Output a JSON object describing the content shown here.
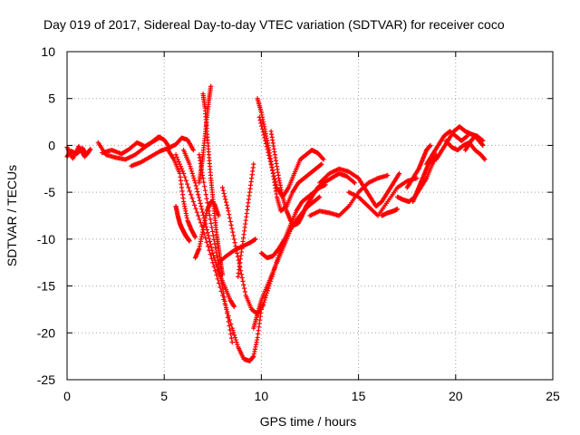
{
  "chart_data": {
    "type": "scatter",
    "title": "Day 019 of 2017, Sidereal Day-to-day VTEC variation (SDTVAR) for receiver coco",
    "xlabel": "GPS time / hours",
    "ylabel": "SDTVAR / TECUs",
    "xlim": [
      0,
      25
    ],
    "ylim": [
      -25,
      10
    ],
    "xticks": [
      0,
      5,
      10,
      15,
      20,
      25
    ],
    "yticks": [
      -25,
      -20,
      -15,
      -10,
      -5,
      0,
      5,
      10
    ],
    "grid": true,
    "marker": "+",
    "color": "#ff0000",
    "series": [
      {
        "x": [
          0.0,
          0.2,
          0.5,
          0.8,
          1.0,
          1.2
        ],
        "y": [
          -1.2,
          -0.6,
          -0.9,
          -0.3,
          -1.0,
          -0.4
        ]
      },
      {
        "x": [
          0.0,
          0.3,
          0.6,
          0.9,
          1.1
        ],
        "y": [
          -0.2,
          -1.4,
          -0.1,
          -1.2,
          -0.7
        ]
      },
      {
        "x": [
          1.6,
          2.0,
          2.5,
          3.0,
          3.5,
          4.0,
          4.4,
          4.7,
          5.0,
          5.3
        ],
        "y": [
          0.3,
          -1.0,
          -1.3,
          -1.5,
          -1.0,
          -0.2,
          0.4,
          0.9,
          0.6,
          -0.3
        ]
      },
      {
        "x": [
          1.8,
          2.3,
          2.8,
          3.2,
          3.6,
          4.0,
          4.5,
          4.8
        ],
        "y": [
          -0.8,
          -0.5,
          -0.9,
          -0.4,
          0.3,
          -0.1,
          0.5,
          0.9
        ]
      },
      {
        "x": [
          3.3,
          3.8,
          4.3,
          4.8,
          5.2,
          5.6,
          5.9,
          6.2,
          6.5
        ],
        "y": [
          -2.2,
          -1.8,
          -1.2,
          -0.6,
          -0.3,
          0.1,
          0.8,
          0.6,
          -0.5
        ]
      },
      {
        "x": [
          5.2,
          5.5,
          5.8,
          6.0,
          6.2,
          6.4,
          6.6
        ],
        "y": [
          -0.5,
          -1.5,
          -3.0,
          -6.0,
          -8.0,
          -9.0,
          -9.8
        ]
      },
      {
        "x": [
          5.6,
          5.7,
          5.8,
          5.9,
          6.0,
          6.1,
          6.2,
          6.3
        ],
        "y": [
          -6.5,
          -7.5,
          -8.3,
          -8.8,
          -9.2,
          -9.6,
          -9.9,
          -10.2
        ]
      },
      {
        "x": [
          6.0,
          6.3,
          6.6,
          6.9,
          7.2,
          7.5,
          7.8,
          8.1,
          8.4,
          8.6
        ],
        "y": [
          -0.5,
          -2.0,
          -4.0,
          -6.5,
          -9.0,
          -11.5,
          -13.5,
          -15.0,
          -16.5,
          -17.2
        ]
      },
      {
        "x": [
          7.8,
          8.2,
          8.6,
          9.0,
          9.4,
          9.7
        ],
        "y": [
          -12.5,
          -11.8,
          -11.2,
          -10.8,
          -10.4,
          -10.0
        ]
      },
      {
        "x": [
          5.6,
          6.0,
          6.5,
          7.0,
          7.5,
          8.0,
          8.5,
          8.8,
          9.1,
          9.4,
          9.6,
          9.8,
          10.0
        ],
        "y": [
          -1.0,
          -3.0,
          -6.0,
          -9.0,
          -12.5,
          -16.0,
          -19.5,
          -21.5,
          -22.8,
          -23.0,
          -22.5,
          -20.5,
          -17.5
        ]
      },
      {
        "x": [
          6.8,
          7.0,
          7.3,
          7.6,
          7.9,
          8.2,
          8.5
        ],
        "y": [
          -1.0,
          -3.5,
          -7.0,
          -10.5,
          -14.0,
          -17.5,
          -21.0
        ]
      },
      {
        "x": [
          7.0,
          7.1,
          7.2,
          7.3,
          7.4,
          7.5,
          7.6,
          7.7,
          7.8,
          7.9,
          8.0
        ],
        "y": [
          5.5,
          4.0,
          1.5,
          -1.0,
          -3.5,
          -5.5,
          -7.5,
          -9.5,
          -11.0,
          -12.5,
          -13.8
        ]
      },
      {
        "x": [
          6.8,
          6.9,
          7.0,
          7.1,
          7.2,
          7.3,
          7.4
        ],
        "y": [
          -4.0,
          -2.5,
          -1.0,
          1.0,
          3.0,
          4.8,
          6.3
        ]
      },
      {
        "x": [
          6.6,
          6.8,
          7.0,
          7.2,
          7.4,
          7.6,
          7.8
        ],
        "y": [
          -12.0,
          -11.0,
          -9.0,
          -7.0,
          -6.0,
          -6.3,
          -7.5
        ]
      },
      {
        "x": [
          8.0,
          8.3,
          8.6,
          8.9,
          9.2,
          9.5,
          9.8,
          10.1,
          10.4,
          10.7,
          11.0
        ],
        "y": [
          -4.5,
          -7.0,
          -10.0,
          -13.0,
          -16.0,
          -17.5,
          -18.0,
          -17.0,
          -15.0,
          -13.0,
          -11.0
        ]
      },
      {
        "x": [
          8.8,
          9.0,
          9.2,
          9.4,
          9.6
        ],
        "y": [
          -14.0,
          -11.0,
          -8.0,
          -5.0,
          -2.0
        ]
      },
      {
        "x": [
          9.8,
          10.0,
          10.2,
          10.4,
          10.6,
          10.8,
          11.0,
          11.3,
          11.6,
          11.9,
          12.2,
          12.5,
          12.8,
          13.1
        ],
        "y": [
          5.0,
          3.5,
          1.5,
          -0.5,
          -3.0,
          -5.5,
          -7.0,
          -6.5,
          -5.0,
          -4.0,
          -3.5,
          -3.0,
          -2.5,
          -2.0
        ]
      },
      {
        "x": [
          9.9,
          10.2,
          10.5,
          10.8,
          11.1,
          11.4,
          11.7,
          12.0,
          12.3,
          12.6,
          12.9,
          13.2
        ],
        "y": [
          3.0,
          0.5,
          -2.0,
          -4.5,
          -5.5,
          -4.5,
          -3.0,
          -1.5,
          -1.0,
          -0.5,
          -0.8,
          -1.5
        ]
      },
      {
        "x": [
          10.5,
          10.7,
          10.9,
          11.1,
          11.3,
          11.5,
          11.7,
          11.9,
          12.1,
          12.3,
          12.6,
          12.9,
          13.2,
          13.6,
          14.0,
          14.4,
          14.8
        ],
        "y": [
          1.5,
          -1.0,
          -3.5,
          -5.5,
          -7.0,
          -8.0,
          -8.5,
          -8.3,
          -7.5,
          -6.5,
          -5.5,
          -4.5,
          -4.0,
          -3.5,
          -3.0,
          -3.3,
          -4.0
        ]
      },
      {
        "x": [
          10.0,
          10.3,
          10.6,
          10.9,
          11.2,
          11.5,
          11.8,
          12.1,
          12.4,
          12.7,
          13.0,
          13.3
        ],
        "y": [
          -11.5,
          -12.0,
          -11.8,
          -11.0,
          -10.0,
          -8.5,
          -7.0,
          -6.0,
          -5.5,
          -5.0,
          -4.5,
          -4.2
        ]
      },
      {
        "x": [
          9.6,
          9.8,
          10.0,
          10.3,
          10.6,
          10.9,
          11.2,
          11.5,
          11.8,
          12.1,
          12.4,
          12.7,
          13.0
        ],
        "y": [
          -19.5,
          -18.0,
          -16.5,
          -15.0,
          -13.5,
          -12.0,
          -10.5,
          -9.0,
          -8.0,
          -7.2,
          -6.5,
          -6.0,
          -5.5
        ]
      },
      {
        "x": [
          12.5,
          13.0,
          13.5,
          14.0,
          14.5,
          15.0,
          15.5,
          16.0,
          16.5
        ],
        "y": [
          -7.5,
          -7.0,
          -7.2,
          -7.5,
          -6.5,
          -5.0,
          -4.0,
          -3.5,
          -3.2
        ]
      },
      {
        "x": [
          13.0,
          13.5,
          14.0,
          14.5,
          15.0,
          15.3,
          15.6,
          15.9,
          16.2,
          16.5,
          16.8,
          17.1
        ],
        "y": [
          -4.0,
          -3.0,
          -2.5,
          -2.8,
          -3.5,
          -4.5,
          -5.5,
          -6.5,
          -6.0,
          -5.0,
          -4.0,
          -3.0
        ]
      },
      {
        "x": [
          14.5,
          15.0,
          15.5,
          16.0,
          16.5,
          17.0,
          17.5,
          18.0
        ],
        "y": [
          -5.0,
          -5.5,
          -6.5,
          -7.5,
          -6.0,
          -4.5,
          -3.8,
          -3.5
        ]
      },
      {
        "x": [
          16.2,
          16.5,
          16.8,
          17.0
        ],
        "y": [
          -7.5,
          -7.2,
          -7.0,
          -6.8
        ]
      },
      {
        "x": [
          17.0,
          17.3,
          17.6,
          17.9,
          18.2,
          18.5,
          18.8,
          19.0
        ],
        "y": [
          -5.5,
          -5.8,
          -6.0,
          -5.5,
          -4.5,
          -3.5,
          -2.0,
          -1.0
        ]
      },
      {
        "x": [
          17.5,
          17.8,
          18.1,
          18.3,
          18.5,
          18.7
        ],
        "y": [
          -4.5,
          -3.5,
          -2.5,
          -1.5,
          -0.5,
          0.0
        ]
      },
      {
        "x": [
          17.8,
          18.0,
          18.2,
          18.4,
          18.6,
          18.8
        ],
        "y": [
          -6.0,
          -5.0,
          -4.0,
          -3.0,
          -2.0,
          -1.2
        ]
      },
      {
        "x": [
          18.5,
          18.8,
          19.1,
          19.4,
          19.7,
          20.0,
          20.3,
          20.6
        ],
        "y": [
          -2.0,
          -1.0,
          0.0,
          1.0,
          1.5,
          1.0,
          0.5,
          1.0
        ]
      },
      {
        "x": [
          19.0,
          19.3,
          19.6,
          19.9,
          20.2,
          20.5,
          20.8,
          21.1,
          21.4
        ],
        "y": [
          -1.5,
          -0.5,
          0.5,
          1.5,
          2.0,
          1.5,
          1.2,
          1.0,
          0.5
        ]
      },
      {
        "x": [
          19.5,
          19.8,
          20.1,
          20.4,
          20.7,
          21.0,
          21.3,
          21.5
        ],
        "y": [
          0.5,
          -0.2,
          -0.5,
          0.0,
          0.3,
          -0.5,
          -1.0,
          -1.5
        ]
      },
      {
        "x": [
          20.5,
          20.8,
          21.0,
          21.2,
          21.4
        ],
        "y": [
          -0.5,
          0.5,
          1.0,
          0.5,
          0.0
        ]
      }
    ]
  }
}
